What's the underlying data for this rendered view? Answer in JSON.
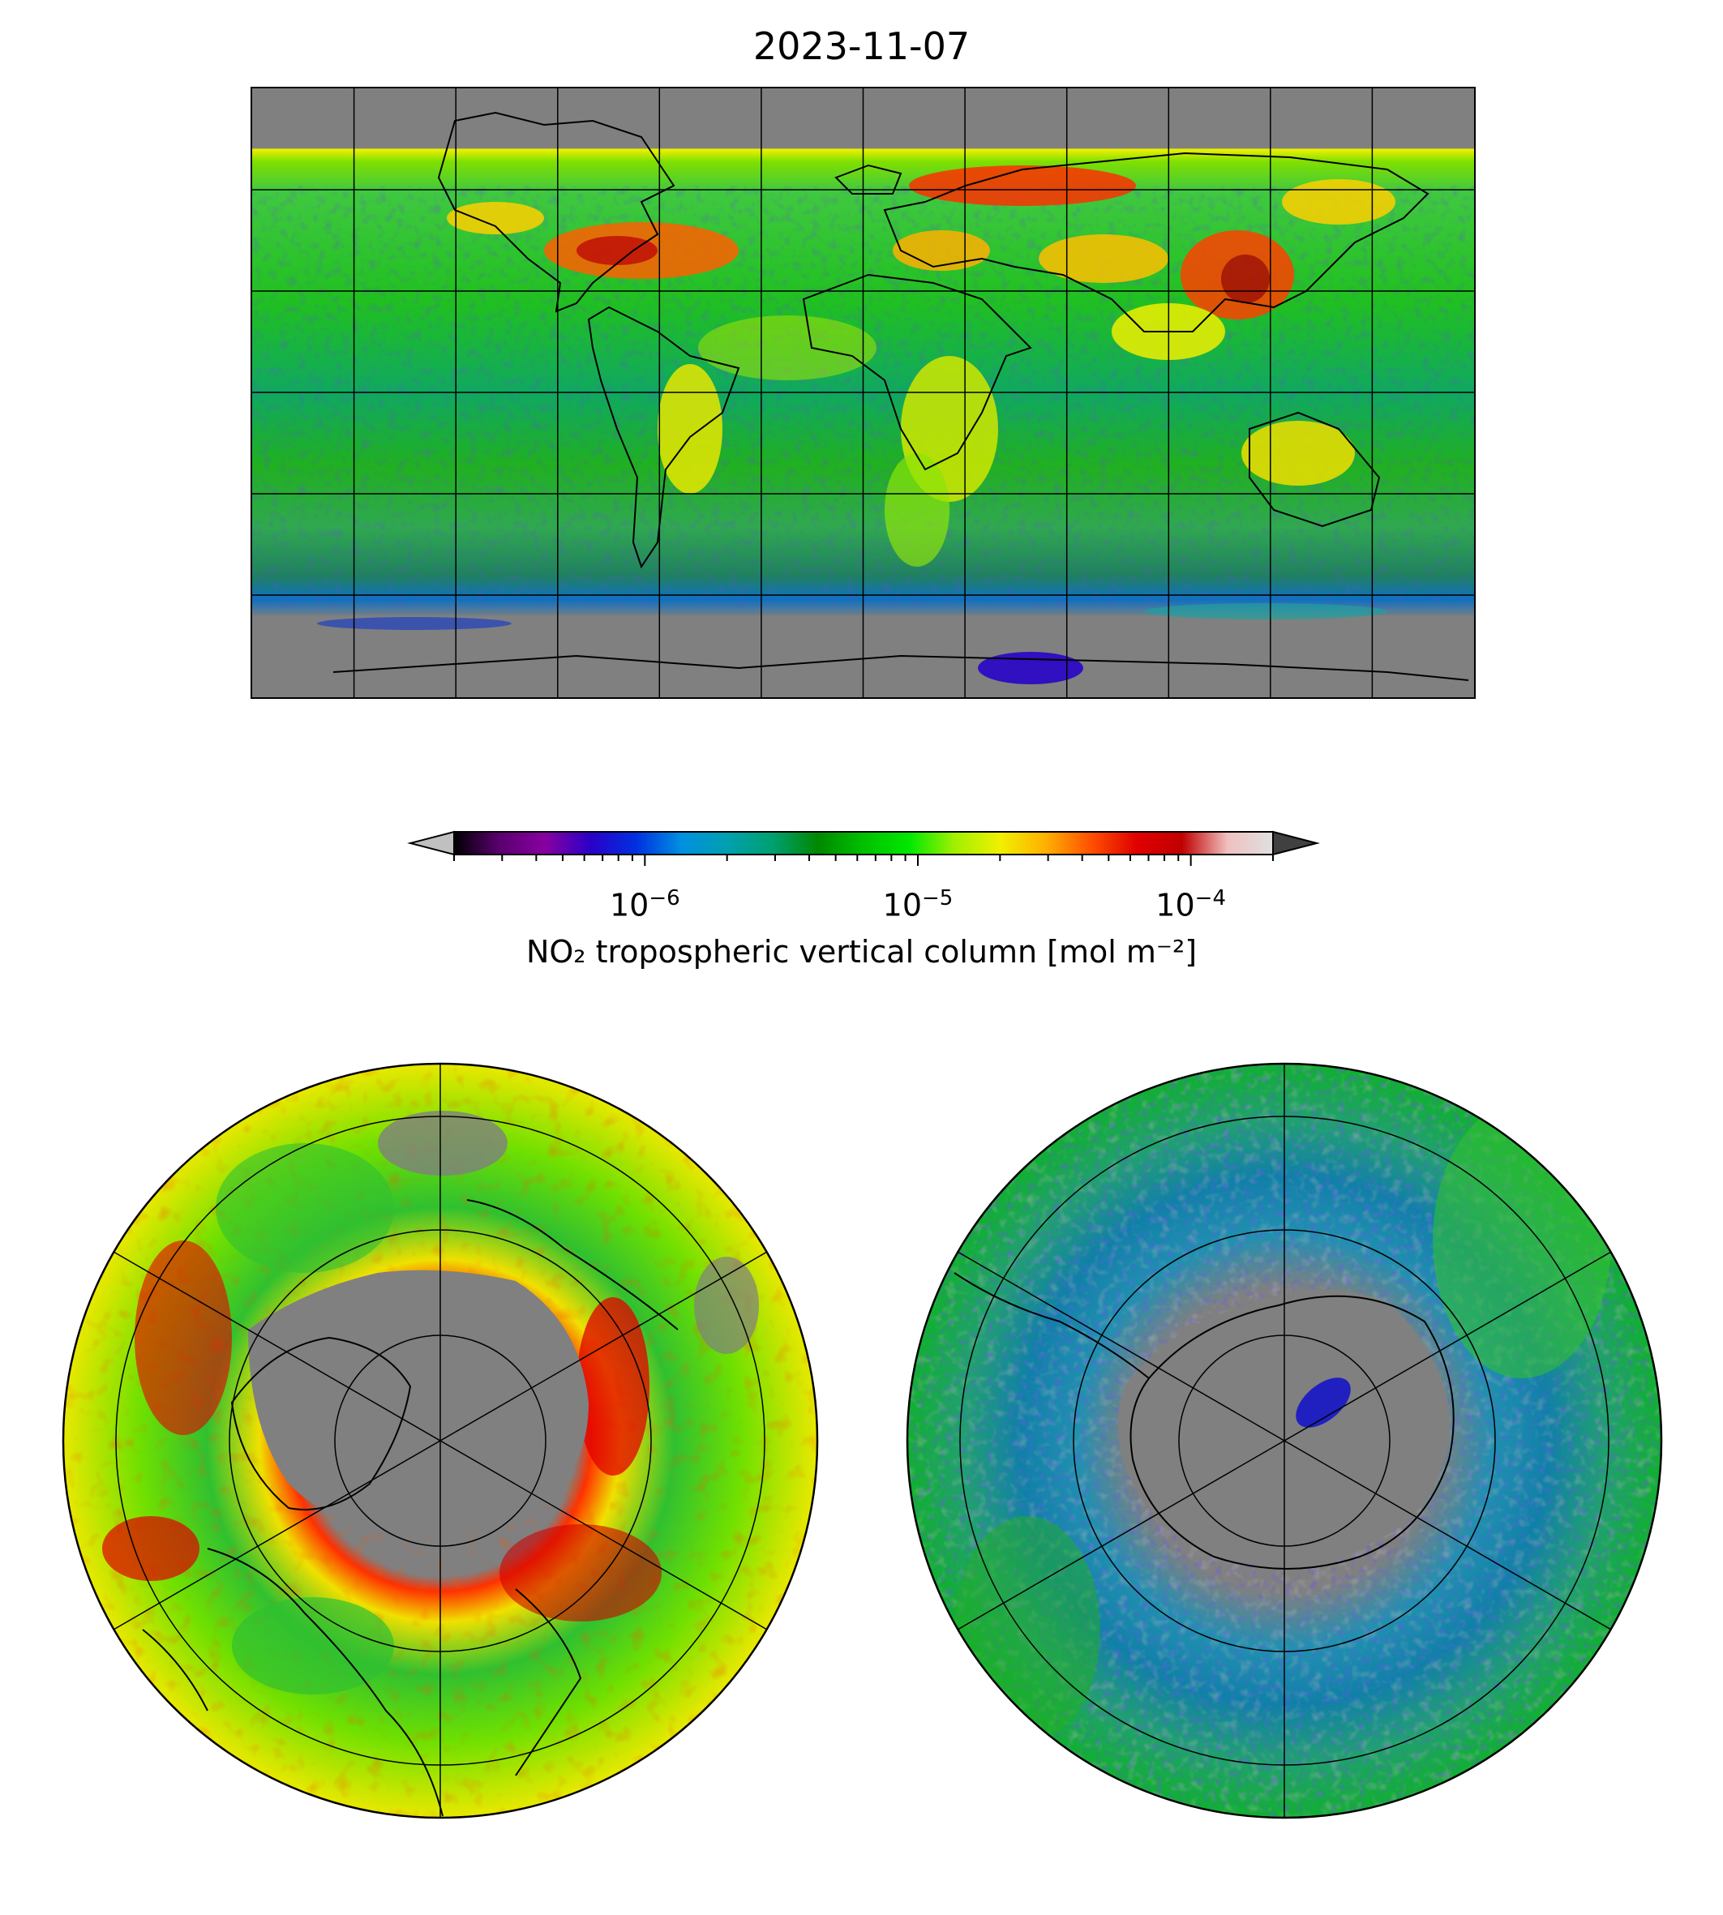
{
  "figure": {
    "title": "2023-11-07"
  },
  "colorbar": {
    "label": "NO₂ tropospheric vertical column [mol m⁻²]",
    "scale": "log",
    "ticks": [
      {
        "base": "10",
        "exp": "−6",
        "value": 1e-06
      },
      {
        "base": "10",
        "exp": "−5",
        "value": 1e-05
      },
      {
        "base": "10",
        "exp": "−4",
        "value": 0.0001
      }
    ],
    "range": [
      2e-07,
      0.0002
    ],
    "extend": "both",
    "under_color": "#c0c0c0",
    "over_color": "#404040",
    "colors": [
      "#000000",
      "#5a0070",
      "#8800a0",
      "#2a00c8",
      "#0030e0",
      "#0090e0",
      "#00a0b0",
      "#00a070",
      "#008800",
      "#00c000",
      "#00e800",
      "#a0f000",
      "#f0f000",
      "#ffb000",
      "#ff5000",
      "#e00000",
      "#c00000",
      "#f0c0c0",
      "#e0e0e0"
    ]
  },
  "maps": {
    "nodata_color": "#808080",
    "global": {
      "projection": "plate-carree",
      "graticule_deg": 30
    },
    "north_polar": {
      "projection": "north-polar-stereographic"
    },
    "south_polar": {
      "projection": "south-polar-stereographic"
    }
  }
}
